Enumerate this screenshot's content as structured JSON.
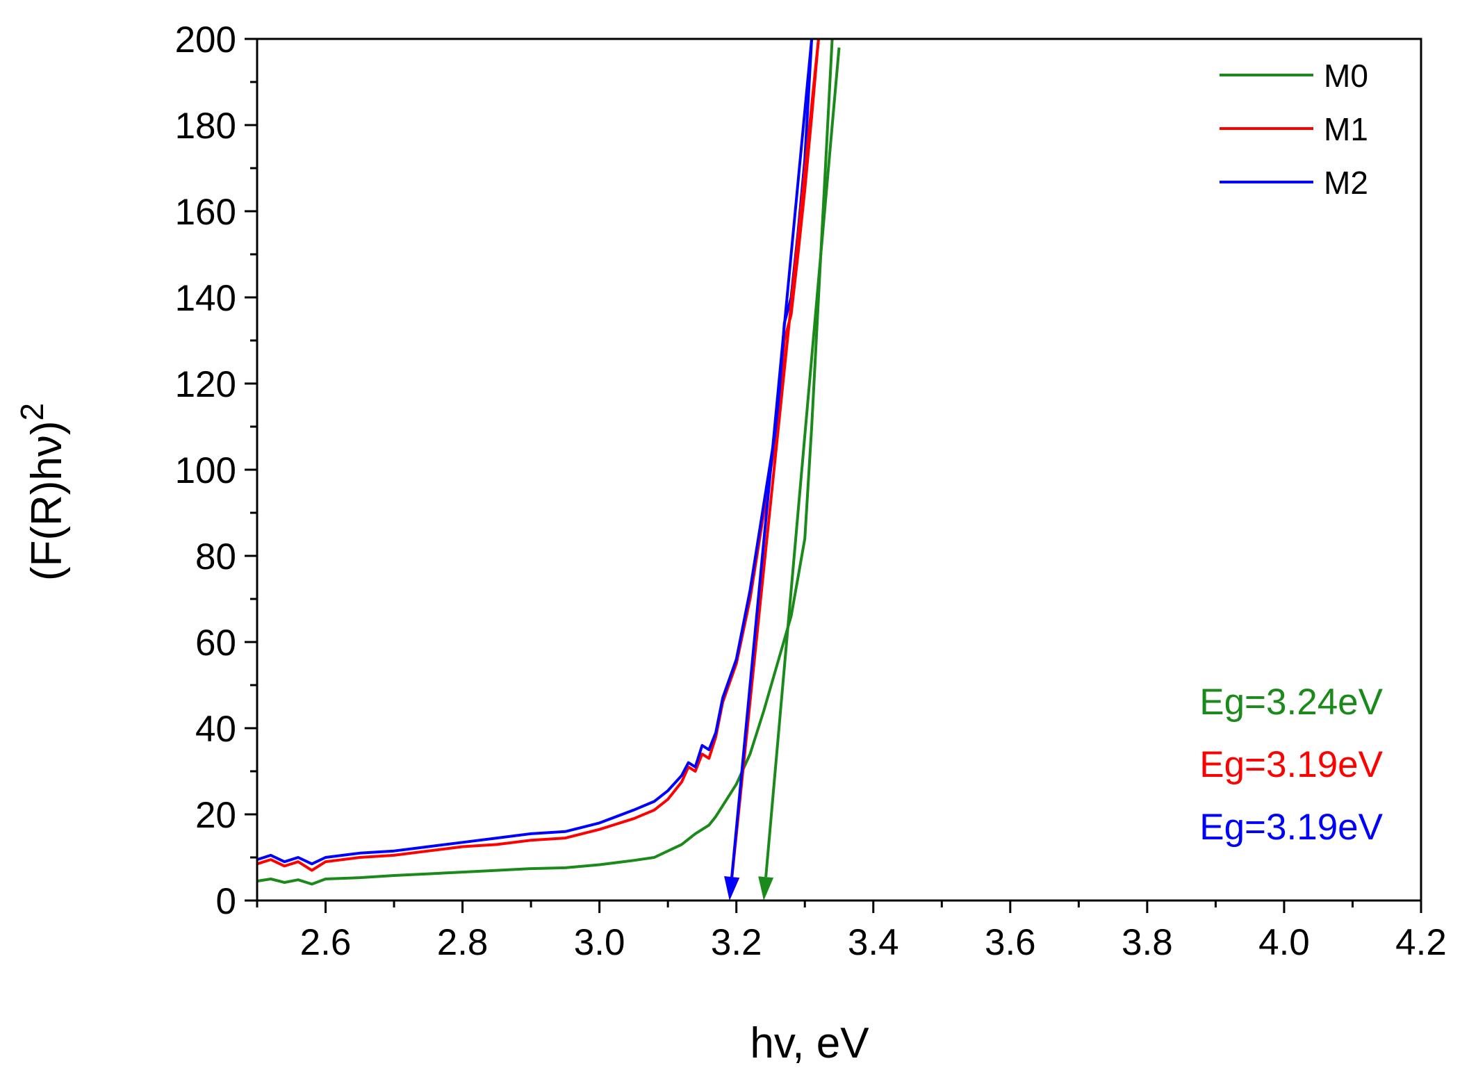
{
  "chart_data": {
    "type": "line",
    "title": "",
    "xlabel": "hv, eV",
    "ylabel": "(F(R)hν)",
    "ylabel_superscript": "2",
    "xlim": [
      2.5,
      4.2
    ],
    "ylim": [
      0,
      200
    ],
    "x_ticks": [
      "2.6",
      "2.8",
      "3.0",
      "3.2",
      "3.4",
      "3.6",
      "3.8",
      "4.0",
      "4.2"
    ],
    "y_ticks": [
      "0",
      "20",
      "40",
      "60",
      "80",
      "100",
      "120",
      "140",
      "160",
      "180",
      "200"
    ],
    "legend_position": "top-right",
    "series": [
      {
        "name": "M0",
        "color": "#1a8a1a",
        "x": [
          2.5,
          2.52,
          2.54,
          2.56,
          2.58,
          2.6,
          2.65,
          2.7,
          2.75,
          2.8,
          2.85,
          2.9,
          2.95,
          3.0,
          3.05,
          3.08,
          3.1,
          3.12,
          3.14,
          3.16,
          3.17,
          3.18,
          3.2,
          3.22,
          3.24,
          3.26,
          3.28,
          3.29,
          3.3,
          3.31,
          3.32,
          3.33,
          3.34
        ],
        "y": [
          4.5,
          5.0,
          4.2,
          4.8,
          3.8,
          5.0,
          5.3,
          5.8,
          6.2,
          6.6,
          7.0,
          7.4,
          7.6,
          8.3,
          9.3,
          10.0,
          11.5,
          13.0,
          15.5,
          17.5,
          19.5,
          22.0,
          27.0,
          34.0,
          44.0,
          55.0,
          66.0,
          75.0,
          84.0,
          110.0,
          140.0,
          170.0,
          200.0
        ]
      },
      {
        "name": "M1",
        "color": "#ff0000",
        "x": [
          2.5,
          2.52,
          2.54,
          2.56,
          2.58,
          2.6,
          2.65,
          2.7,
          2.75,
          2.8,
          2.85,
          2.9,
          2.95,
          3.0,
          3.05,
          3.08,
          3.1,
          3.12,
          3.13,
          3.14,
          3.15,
          3.16,
          3.17,
          3.18,
          3.2,
          3.22,
          3.24,
          3.26,
          3.27,
          3.28,
          3.29,
          3.3,
          3.31,
          3.32
        ],
        "y": [
          8.5,
          9.5,
          8.0,
          9.0,
          7.0,
          9.0,
          10.0,
          10.5,
          11.5,
          12.5,
          13.0,
          14.0,
          14.5,
          16.5,
          19.0,
          21.0,
          23.5,
          27.5,
          31.0,
          30.0,
          34.0,
          33.0,
          38.0,
          46.0,
          55.0,
          70.0,
          90.0,
          110.0,
          130.0,
          136.0,
          150.0,
          165.0,
          182.0,
          200.0
        ]
      },
      {
        "name": "M2",
        "color": "#0000ff",
        "x": [
          2.5,
          2.52,
          2.54,
          2.56,
          2.58,
          2.6,
          2.65,
          2.7,
          2.75,
          2.8,
          2.85,
          2.9,
          2.95,
          3.0,
          3.05,
          3.08,
          3.1,
          3.12,
          3.13,
          3.14,
          3.15,
          3.16,
          3.17,
          3.18,
          3.2,
          3.22,
          3.24,
          3.26,
          3.27,
          3.28,
          3.29,
          3.3,
          3.31
        ],
        "y": [
          9.5,
          10.5,
          9.0,
          10.0,
          8.5,
          10.0,
          11.0,
          11.5,
          12.5,
          13.5,
          14.5,
          15.5,
          16.0,
          18.0,
          21.0,
          23.0,
          25.5,
          29.0,
          32.0,
          31.0,
          36.0,
          35.0,
          39.0,
          47.0,
          56.0,
          72.0,
          92.0,
          112.0,
          134.0,
          140.0,
          155.0,
          172.0,
          200.0
        ]
      }
    ],
    "tangent_lines": [
      {
        "name": "M0 tangent",
        "color": "#1a8a1a",
        "x": [
          3.35,
          3.24
        ],
        "y": [
          198,
          0
        ]
      },
      {
        "name": "M1 tangent",
        "color": "#ff0000",
        "x": [
          3.32,
          3.19
        ],
        "y": [
          200,
          0
        ]
      },
      {
        "name": "M2 tangent",
        "color": "#0000ff",
        "x": [
          3.31,
          3.19
        ],
        "y": [
          200,
          0
        ]
      }
    ],
    "annotations": [
      {
        "text": "Eg=3.24eV",
        "color": "#1a8a1a"
      },
      {
        "text": "Eg=3.19eV",
        "color": "#ff0000"
      },
      {
        "text": "Eg=3.19eV",
        "color": "#0000ff"
      }
    ]
  }
}
